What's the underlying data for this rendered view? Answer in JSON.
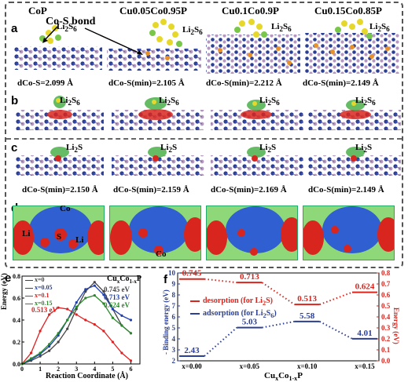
{
  "columns": [
    {
      "label_parts": [
        "CoP"
      ]
    },
    {
      "label_parts": [
        "Cu0.05Co0.95P"
      ]
    },
    {
      "label_parts": [
        "Cu0.1Co0.9P"
      ]
    },
    {
      "label_parts": [
        "Cu0.15Co0.85P"
      ]
    }
  ],
  "row_a": {
    "letter": "a",
    "molecule": "Li2S6",
    "bond_callout": "Co-S bond",
    "distances": [
      "dCo-S=2.099 Å",
      "dCo-S(min)=2.105 Å",
      "dCo-S(min)=2.212 Å",
      "dCo-S(min)=2.149 Å"
    ]
  },
  "row_b": {
    "letter": "b",
    "molecule": "Li2S6"
  },
  "row_c": {
    "letter": "c",
    "molecule": "Li2S",
    "distances": [
      "dCo-S(min)=2.150 Å",
      "dCo-S(min)=2.159 Å",
      "dCo-S(min)=2.169 Å",
      "dCo-S(min)=2.149 Å"
    ]
  },
  "row_d": {
    "letter": "d",
    "atom_labels": [
      "Co",
      "Li",
      "S",
      "Li",
      "Co"
    ]
  },
  "panel_e": {
    "letter": "e",
    "ylabel": "Energy (eV)",
    "xlabel": "Reaction Coordinate (Å)",
    "compound": "CuxCo1-xP",
    "annotations": [
      "0.745 eV",
      "0.713 eV",
      "0.624 eV",
      "0.513 eV"
    ]
  },
  "panel_f": {
    "letter": "f",
    "ylabel_left": "- Binding energy (eV)",
    "ylabel_right": "Energy (eV)",
    "xlabel": "CuxCo1-xP",
    "legend": [
      "desorption (for Li2S)",
      "adsorption (for Li2S6)"
    ]
  },
  "chart_data": [
    {
      "type": "line",
      "title": "",
      "xlabel": "Reaction Coordinate (Å)",
      "ylabel": "Energy (eV)",
      "xlim": [
        0,
        6.5
      ],
      "ylim": [
        0.0,
        0.8
      ],
      "xticks": [
        "0",
        "1",
        "2",
        "3",
        "4",
        "5",
        "6"
      ],
      "yticks": [
        "0.0",
        "0.2",
        "0.4",
        "0.6",
        "0.8"
      ],
      "legend_position": "top-left",
      "series": [
        {
          "name": "x=0",
          "color": "#444444",
          "points": [
            [
              0,
              0.0
            ],
            [
              0.5,
              0.03
            ],
            [
              1,
              0.07
            ],
            [
              1.5,
              0.12
            ],
            [
              2,
              0.2
            ],
            [
              2.5,
              0.32
            ],
            [
              3,
              0.5
            ],
            [
              3.5,
              0.66
            ],
            [
              4,
              0.745
            ],
            [
              4.5,
              0.66
            ],
            [
              5,
              0.5
            ],
            [
              5.5,
              0.35
            ],
            [
              6,
              0.28
            ]
          ]
        },
        {
          "name": "x=0.05",
          "color": "#1f3fb0",
          "points": [
            [
              0,
              0.0
            ],
            [
              0.5,
              0.04
            ],
            [
              1,
              0.09
            ],
            [
              1.5,
              0.16
            ],
            [
              2,
              0.26
            ],
            [
              2.5,
              0.4
            ],
            [
              3,
              0.56
            ],
            [
              3.5,
              0.68
            ],
            [
              4,
              0.713
            ],
            [
              4.5,
              0.63
            ],
            [
              5,
              0.5
            ],
            [
              5.5,
              0.44
            ],
            [
              6,
              0.4
            ]
          ]
        },
        {
          "name": "x=0.1",
          "color": "#e02020",
          "points": [
            [
              0,
              0.0
            ],
            [
              0.5,
              0.1
            ],
            [
              1,
              0.3
            ],
            [
              1.5,
              0.45
            ],
            [
              2,
              0.513
            ],
            [
              2.5,
              0.5
            ],
            [
              3,
              0.45
            ],
            [
              3.5,
              0.4
            ],
            [
              4,
              0.36
            ],
            [
              4.5,
              0.3
            ],
            [
              5,
              0.2
            ],
            [
              5.5,
              0.1
            ],
            [
              6,
              0.03
            ]
          ]
        },
        {
          "name": "x=0.15",
          "color": "#2a8a2a",
          "points": [
            [
              0,
              0.0
            ],
            [
              0.5,
              0.05
            ],
            [
              1,
              0.1
            ],
            [
              1.5,
              0.18
            ],
            [
              2,
              0.28
            ],
            [
              2.5,
              0.4
            ],
            [
              3,
              0.52
            ],
            [
              3.5,
              0.6
            ],
            [
              4,
              0.624
            ],
            [
              4.5,
              0.55
            ],
            [
              5,
              0.42
            ],
            [
              5.5,
              0.35
            ],
            [
              6,
              0.28
            ]
          ]
        }
      ]
    },
    {
      "type": "line",
      "title": "",
      "xlabel": "CuxCo1-xP",
      "categories": [
        "x=0.00",
        "x=0.05",
        "x=0.10",
        "x=0.15"
      ],
      "left_axis": {
        "label": "- Binding energy (eV)",
        "ylim": [
          2,
          10
        ],
        "ticks": [
          "2",
          "3",
          "4",
          "5",
          "6",
          "7",
          "8",
          "9",
          "10"
        ]
      },
      "right_axis": {
        "label": "Energy (eV)",
        "ylim": [
          0.0,
          0.8
        ],
        "ticks": [
          "0.0",
          "0.1",
          "0.2",
          "0.3",
          "0.4",
          "0.5",
          "0.6",
          "0.7",
          "0.8"
        ]
      },
      "series": [
        {
          "name": "desorption (for Li2S)",
          "axis": "right",
          "color": "#d8261f",
          "values": [
            0.745,
            0.713,
            0.513,
            0.624
          ],
          "labels": [
            "0.745",
            "0.713",
            "0.513",
            "0.624"
          ]
        },
        {
          "name": "adsorption (for Li2S6)",
          "axis": "left",
          "color": "#2a3f9a",
          "values": [
            2.43,
            5.03,
            5.58,
            4.01
          ],
          "labels": [
            "2.43",
            "5.03",
            "5.58",
            "4.01"
          ]
        }
      ]
    }
  ],
  "colors": {
    "cu_atom": "#e8912a",
    "co_atom": "#2a3f9a",
    "p_atom": "#b59ac0",
    "s_atom": "#e6d82a",
    "li_atom": "#79c74a"
  }
}
